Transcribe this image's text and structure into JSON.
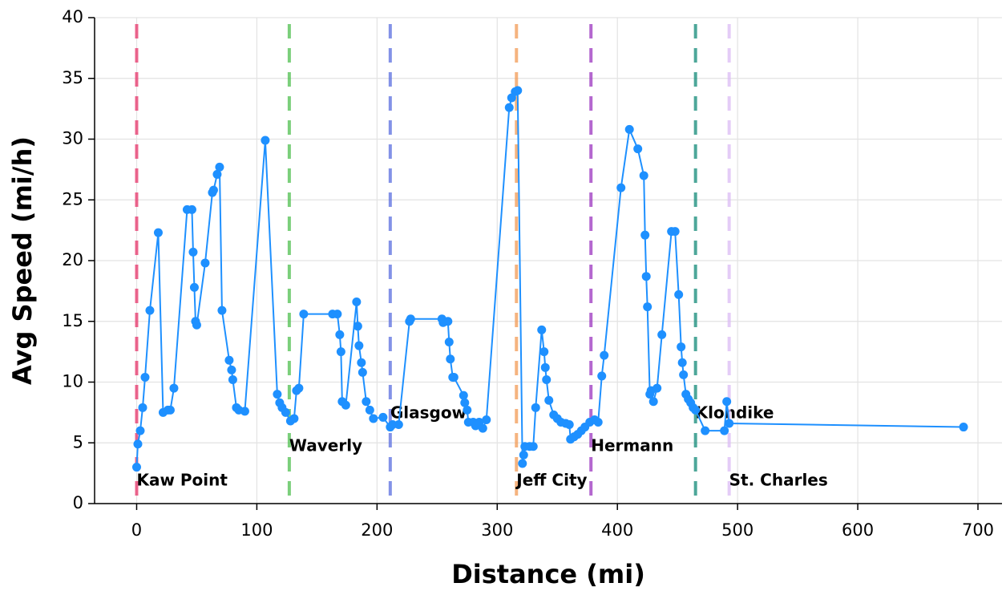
{
  "chart_data": {
    "type": "line",
    "xlabel": "Distance (mi)",
    "ylabel": "Avg Speed (mi/h)",
    "color": "#1e90ff",
    "grid": true,
    "xlim": [
      -35,
      720
    ],
    "ylim": [
      0,
      40
    ],
    "xticks": [
      0,
      100,
      200,
      300,
      400,
      500,
      600,
      700
    ],
    "yticks": [
      0,
      5,
      10,
      15,
      20,
      25,
      30,
      35,
      40
    ],
    "x": [
      0,
      1,
      3,
      5,
      7,
      11,
      18,
      22,
      26,
      28,
      31,
      42,
      46,
      47,
      48,
      49,
      50,
      57,
      63,
      64,
      67,
      69,
      71,
      77,
      79,
      80,
      83,
      85,
      90,
      107,
      117,
      119,
      121,
      124,
      128,
      131,
      133,
      135,
      139,
      163,
      167,
      169,
      170,
      171,
      174,
      183,
      184,
      185,
      187,
      188,
      191,
      194,
      197,
      205,
      211,
      213,
      218,
      227,
      228,
      254,
      255,
      259,
      260,
      261,
      263,
      264,
      272,
      273,
      275,
      276,
      280,
      282,
      285,
      288,
      291,
      310,
      312,
      315,
      317,
      321,
      322,
      323,
      327,
      330,
      332,
      337,
      339,
      340,
      341,
      343,
      347,
      350,
      353,
      357,
      360,
      361,
      364,
      367,
      370,
      373,
      377,
      381,
      384,
      387,
      389,
      403,
      410,
      417,
      422,
      423,
      424,
      425,
      427,
      428,
      430,
      433,
      437,
      445,
      448,
      451,
      453,
      454,
      455,
      457,
      459,
      461,
      463,
      465,
      473,
      489,
      491,
      493,
      688
    ],
    "values": [
      3.0,
      4.9,
      6.0,
      7.9,
      10.4,
      15.9,
      22.3,
      7.5,
      7.7,
      7.7,
      9.5,
      24.2,
      24.2,
      20.7,
      17.8,
      15.0,
      14.7,
      19.8,
      25.6,
      25.8,
      27.1,
      27.7,
      15.9,
      11.8,
      11.0,
      10.2,
      7.9,
      7.7,
      7.6,
      29.9,
      9.0,
      8.3,
      7.9,
      7.5,
      6.8,
      7.0,
      9.3,
      9.5,
      15.6,
      15.6,
      15.6,
      13.9,
      12.5,
      8.4,
      8.1,
      16.6,
      14.6,
      13.0,
      11.6,
      10.8,
      8.4,
      7.7,
      7.0,
      7.1,
      6.3,
      6.5,
      6.5,
      15.0,
      15.2,
      15.2,
      14.9,
      15.0,
      13.3,
      11.9,
      10.4,
      10.4,
      8.9,
      8.3,
      7.7,
      6.7,
      6.7,
      6.4,
      6.7,
      6.2,
      6.9,
      32.6,
      33.4,
      33.9,
      34.0,
      3.3,
      4.0,
      4.7,
      4.7,
      4.7,
      7.9,
      14.3,
      12.5,
      11.2,
      10.2,
      8.5,
      7.3,
      7.0,
      6.7,
      6.6,
      6.5,
      5.3,
      5.5,
      5.7,
      6.0,
      6.3,
      6.7,
      6.9,
      6.7,
      10.5,
      12.2,
      26.0,
      30.8,
      29.2,
      27.0,
      22.1,
      18.7,
      16.2,
      9.0,
      9.3,
      8.4,
      9.5,
      13.9,
      22.4,
      22.4,
      17.2,
      12.9,
      11.6,
      10.6,
      9.0,
      8.6,
      8.3,
      7.9,
      7.7,
      6.0,
      6.0,
      8.4,
      6.6,
      6.3
    ],
    "markers": [
      {
        "label": "Kaw Point",
        "x": 0,
        "color": "#e8356a"
      },
      {
        "label": "Waverly",
        "x": 127,
        "color": "#4fbf4f"
      },
      {
        "label": "Glasgow",
        "x": 211,
        "color": "#5a6ee0"
      },
      {
        "label": "Jeff City",
        "x": 316,
        "color": "#f29a55"
      },
      {
        "label": "Hermann",
        "x": 378,
        "color": "#9b35c0"
      },
      {
        "label": "Klondike",
        "x": 465,
        "color": "#128a78"
      },
      {
        "label": "St. Charles",
        "x": 493,
        "color": "#dcbcf5"
      }
    ]
  }
}
